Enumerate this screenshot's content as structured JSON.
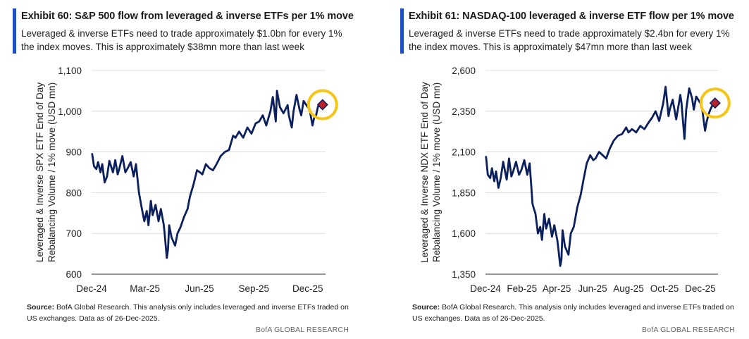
{
  "chart_data": [
    {
      "type": "line",
      "title": "Exhibit 60: S&P 500 flow from leveraged & inverse ETFs per 1% move",
      "subtitle": "Leveraged & inverse ETFs need to trade approximately $1.0bn for every 1% the index moves. This is approximately $38mn more than last week",
      "ylabel_line1": "Leveraged & Inverse SPX ETF End of Day",
      "ylabel_line2": "Rebalancing Volume / 1% move (USD mn)",
      "xlabel": "",
      "ylim": [
        600,
        1100
      ],
      "yticks": [
        600,
        700,
        800,
        900,
        1000,
        1100
      ],
      "ytick_labels": [
        "600",
        "700",
        "800",
        "900",
        "1,000",
        "1,100"
      ],
      "xlim": [
        "2024-12-01",
        "2025-12-31"
      ],
      "xticks": [
        "2024-12-01",
        "2025-03-01",
        "2025-06-01",
        "2025-09-01",
        "2025-12-01"
      ],
      "xtick_labels": [
        "Dec-24",
        "Mar-25",
        "Jun-25",
        "Sep-25",
        "Dec-25"
      ],
      "grid": true,
      "line_color": "#0a1f5c",
      "marker_color": "#b8202d",
      "highlight_color": "#f5c518",
      "series": [
        {
          "x": [
            "2024-12-02",
            "2024-12-05",
            "2024-12-09",
            "2024-12-12",
            "2024-12-16",
            "2024-12-19",
            "2024-12-23",
            "2024-12-27",
            "2024-12-31",
            "2025-01-06",
            "2025-01-10",
            "2025-01-14",
            "2025-01-17",
            "2025-01-22",
            "2025-01-27",
            "2025-01-31",
            "2025-02-05",
            "2025-02-10",
            "2025-02-14",
            "2025-02-19",
            "2025-02-24",
            "2025-02-28",
            "2025-03-04",
            "2025-03-07",
            "2025-03-11",
            "2025-03-14",
            "2025-03-19",
            "2025-03-24",
            "2025-03-28",
            "2025-04-02",
            "2025-04-04",
            "2025-04-07",
            "2025-04-09",
            "2025-04-11",
            "2025-04-15",
            "2025-04-21",
            "2025-04-25",
            "2025-04-30",
            "2025-05-06",
            "2025-05-12",
            "2025-05-16",
            "2025-05-22",
            "2025-05-28",
            "2025-06-02",
            "2025-06-06",
            "2025-06-12",
            "2025-06-18",
            "2025-06-24",
            "2025-06-30",
            "2025-07-07",
            "2025-07-14",
            "2025-07-21",
            "2025-07-28",
            "2025-08-01",
            "2025-08-07",
            "2025-08-14",
            "2025-08-21",
            "2025-08-28",
            "2025-09-04",
            "2025-09-10",
            "2025-09-16",
            "2025-09-22",
            "2025-09-29",
            "2025-10-03",
            "2025-10-08",
            "2025-10-10",
            "2025-10-15",
            "2025-10-21",
            "2025-10-28",
            "2025-10-30",
            "2025-11-04",
            "2025-11-07",
            "2025-11-12",
            "2025-11-17",
            "2025-11-20",
            "2025-11-24",
            "2025-12-01",
            "2025-12-04",
            "2025-12-09",
            "2025-12-12",
            "2025-12-15",
            "2025-12-18",
            "2025-12-22",
            "2025-12-26"
          ],
          "y": [
            895,
            865,
            858,
            875,
            850,
            870,
            825,
            840,
            878,
            850,
            880,
            845,
            860,
            890,
            850,
            860,
            875,
            840,
            870,
            800,
            760,
            730,
            755,
            720,
            780,
            745,
            770,
            730,
            760,
            720,
            690,
            640,
            660,
            720,
            690,
            670,
            700,
            715,
            740,
            760,
            790,
            820,
            855,
            850,
            845,
            870,
            860,
            855,
            870,
            890,
            900,
            905,
            940,
            935,
            950,
            935,
            960,
            945,
            970,
            975,
            990,
            965,
            1000,
            1035,
            975,
            1050,
            1010,
            995,
            1015,
            990,
            960,
            1000,
            1040,
            1005,
            990,
            1025,
            1010,
            1005,
            965,
            985,
            990,
            1010,
            1020,
            1016
          ]
        }
      ],
      "source": "BofA Global Research.  This analysis only includes leveraged and inverse ETFs traded on US exchanges.  Data as of 26-Dec-2025.",
      "brand": "BofA GLOBAL RESEARCH"
    },
    {
      "type": "line",
      "title": "Exhibit 61: NASDAQ-100 leveraged & inverse ETF flow per 1% move",
      "subtitle": "Leveraged & inverse ETFs need to trade approximately $2.4bn for every 1% the index moves. This is approximately $47mn more than last week",
      "ylabel_line1": "Leveraged & Inverse NDX ETF End of Day",
      "ylabel_line2": "Rebalancing Volume / 1% move (USD mn)",
      "xlabel": "",
      "ylim": [
        1350,
        2600
      ],
      "yticks": [
        1350,
        1600,
        1850,
        2100,
        2350,
        2600
      ],
      "ytick_labels": [
        "1,350",
        "1,600",
        "1,850",
        "2,100",
        "2,350",
        "2,600"
      ],
      "xlim": [
        "2024-12-01",
        "2025-12-31"
      ],
      "xticks": [
        "2024-12-01",
        "2025-02-01",
        "2025-04-01",
        "2025-06-01",
        "2025-08-01",
        "2025-10-01",
        "2025-12-01"
      ],
      "xtick_labels": [
        "Dec-24",
        "Feb-25",
        "Apr-25",
        "Jun-25",
        "Aug-25",
        "Oct-25",
        "Dec-25"
      ],
      "grid": true,
      "line_color": "#0a1f5c",
      "marker_color": "#b8202d",
      "highlight_color": "#f5c518",
      "series": [
        {
          "x": [
            "2024-12-02",
            "2024-12-05",
            "2024-12-09",
            "2024-12-12",
            "2024-12-16",
            "2024-12-19",
            "2024-12-23",
            "2024-12-27",
            "2024-12-31",
            "2025-01-06",
            "2025-01-10",
            "2025-01-14",
            "2025-01-17",
            "2025-01-22",
            "2025-01-27",
            "2025-01-31",
            "2025-02-05",
            "2025-02-10",
            "2025-02-14",
            "2025-02-19",
            "2025-02-24",
            "2025-02-28",
            "2025-03-04",
            "2025-03-07",
            "2025-03-11",
            "2025-03-14",
            "2025-03-19",
            "2025-03-24",
            "2025-03-28",
            "2025-04-02",
            "2025-04-04",
            "2025-04-07",
            "2025-04-09",
            "2025-04-11",
            "2025-04-15",
            "2025-04-21",
            "2025-04-25",
            "2025-04-30",
            "2025-05-06",
            "2025-05-12",
            "2025-05-16",
            "2025-05-22",
            "2025-05-28",
            "2025-06-02",
            "2025-06-06",
            "2025-06-12",
            "2025-06-18",
            "2025-06-24",
            "2025-06-30",
            "2025-07-07",
            "2025-07-14",
            "2025-07-21",
            "2025-07-28",
            "2025-08-01",
            "2025-08-07",
            "2025-08-14",
            "2025-08-21",
            "2025-08-28",
            "2025-09-04",
            "2025-09-10",
            "2025-09-16",
            "2025-09-22",
            "2025-09-29",
            "2025-10-03",
            "2025-10-08",
            "2025-10-10",
            "2025-10-15",
            "2025-10-21",
            "2025-10-28",
            "2025-10-30",
            "2025-11-04",
            "2025-11-07",
            "2025-11-12",
            "2025-11-17",
            "2025-11-20",
            "2025-11-24",
            "2025-12-01",
            "2025-12-04",
            "2025-12-09",
            "2025-12-12",
            "2025-12-15",
            "2025-12-18",
            "2025-12-22",
            "2025-12-26"
          ],
          "y": [
            2070,
            1960,
            1940,
            2000,
            1920,
            1980,
            1880,
            1940,
            2040,
            1930,
            2060,
            1950,
            1980,
            2040,
            1960,
            1990,
            2050,
            1960,
            2030,
            1780,
            1720,
            1600,
            1640,
            1560,
            1720,
            1630,
            1690,
            1580,
            1650,
            1560,
            1500,
            1400,
            1440,
            1620,
            1520,
            1470,
            1600,
            1640,
            1760,
            1840,
            1920,
            2030,
            2080,
            2050,
            2060,
            2100,
            2080,
            2060,
            2120,
            2170,
            2200,
            2210,
            2250,
            2220,
            2240,
            2220,
            2260,
            2240,
            2280,
            2310,
            2350,
            2290,
            2400,
            2500,
            2320,
            2360,
            2420,
            2300,
            2450,
            2400,
            2180,
            2360,
            2490,
            2430,
            2360,
            2440,
            2400,
            2370,
            2230,
            2290,
            2330,
            2360,
            2390,
            2400
          ]
        }
      ],
      "source": "BofA Global Research.  This analysis only includes leveraged and inverse ETFs traded on US exchanges.  Data as of 26-Dec-2025.",
      "brand": "BofA GLOBAL RESEARCH"
    }
  ],
  "labels": {
    "source_prefix": "Source:"
  }
}
